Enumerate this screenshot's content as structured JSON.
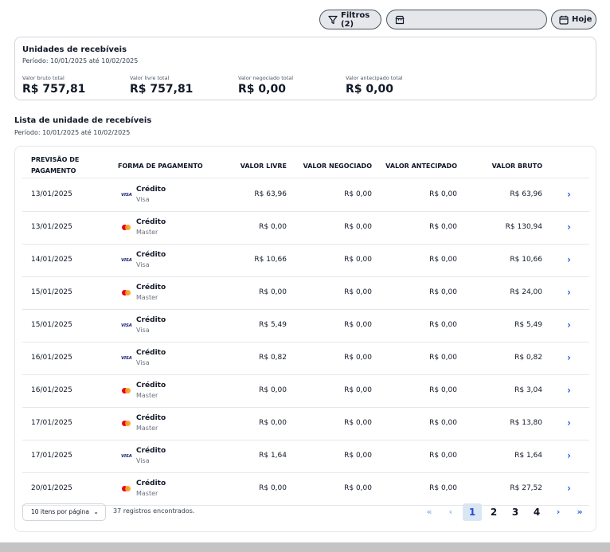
{
  "topbar": {
    "filter_label": "Filtros (2)",
    "store_value": "",
    "today_label": "Hoje"
  },
  "summary": {
    "title": "Unidades de recebíveis",
    "period": "Período: 10/01/2025 até 10/02/2025",
    "metrics": [
      {
        "label": "Valor bruto total",
        "value": "R$ 757,81"
      },
      {
        "label": "Valor livre total",
        "value": "R$ 757,81"
      },
      {
        "label": "Valor negociado total",
        "value": "R$ 0,00"
      },
      {
        "label": "Valor antecipado total",
        "value": "R$ 0,00"
      }
    ]
  },
  "list": {
    "title": "Lista de unidade de recebíveis",
    "period": "Período: 10/01/2025 até 10/02/2025"
  },
  "table": {
    "headers": {
      "date": "PREVISÃO DE PAGAMENTO",
      "payment": "FORMA DE PAGAMENTO",
      "free": "VALOR LIVRE",
      "negotiated": "VALOR NEGOCIADO",
      "anticipated": "VALOR ANTECIPADO",
      "gross": "VALOR BRUTO"
    },
    "rows": [
      {
        "date": "13/01/2025",
        "type": "Crédito",
        "brand": "Visa",
        "icon": "visa",
        "free": "R$ 63,96",
        "negotiated": "R$ 0,00",
        "anticipated": "R$ 0,00",
        "gross": "R$ 63,96"
      },
      {
        "date": "13/01/2025",
        "type": "Crédito",
        "brand": "Master",
        "icon": "mastercard",
        "free": "R$ 0,00",
        "negotiated": "R$ 0,00",
        "anticipated": "R$ 0,00",
        "gross": "R$ 130,94"
      },
      {
        "date": "14/01/2025",
        "type": "Crédito",
        "brand": "Visa",
        "icon": "visa",
        "free": "R$ 10,66",
        "negotiated": "R$ 0,00",
        "anticipated": "R$ 0,00",
        "gross": "R$ 10,66"
      },
      {
        "date": "15/01/2025",
        "type": "Crédito",
        "brand": "Master",
        "icon": "mastercard",
        "free": "R$ 0,00",
        "negotiated": "R$ 0,00",
        "anticipated": "R$ 0,00",
        "gross": "R$ 24,00"
      },
      {
        "date": "15/01/2025",
        "type": "Crédito",
        "brand": "Visa",
        "icon": "visa",
        "free": "R$ 5,49",
        "negotiated": "R$ 0,00",
        "anticipated": "R$ 0,00",
        "gross": "R$ 5,49"
      },
      {
        "date": "16/01/2025",
        "type": "Crédito",
        "brand": "Visa",
        "icon": "visa",
        "free": "R$ 0,82",
        "negotiated": "R$ 0,00",
        "anticipated": "R$ 0,00",
        "gross": "R$ 0,82"
      },
      {
        "date": "16/01/2025",
        "type": "Crédito",
        "brand": "Master",
        "icon": "mastercard",
        "free": "R$ 0,00",
        "negotiated": "R$ 0,00",
        "anticipated": "R$ 0,00",
        "gross": "R$ 3,04"
      },
      {
        "date": "17/01/2025",
        "type": "Crédito",
        "brand": "Master",
        "icon": "mastercard",
        "free": "R$ 0,00",
        "negotiated": "R$ 0,00",
        "anticipated": "R$ 0,00",
        "gross": "R$ 13,80"
      },
      {
        "date": "17/01/2025",
        "type": "Crédito",
        "brand": "Visa",
        "icon": "visa",
        "free": "R$ 1,64",
        "negotiated": "R$ 0,00",
        "anticipated": "R$ 0,00",
        "gross": "R$ 1,64"
      },
      {
        "date": "20/01/2025",
        "type": "Crédito",
        "brand": "Master",
        "icon": "mastercard",
        "free": "R$ 0,00",
        "negotiated": "R$ 0,00",
        "anticipated": "R$ 0,00",
        "gross": "R$ 27,52"
      }
    ]
  },
  "footer": {
    "per_page": "10 itens por página",
    "records": "37 registros encontrados.",
    "pages": [
      "1",
      "2",
      "3",
      "4"
    ],
    "current_page": "1"
  },
  "icons": {
    "filter": "filter-icon",
    "store": "store-icon",
    "calendar": "calendar-icon",
    "row_action": "chevron-right-icon"
  },
  "colors": {
    "accent": "#2563eb",
    "active_page_bg": "#dbe6f5",
    "visa": "#1a1f71",
    "mastercard_red": "#eb001b",
    "mastercard_yellow": "#f79e1b"
  }
}
